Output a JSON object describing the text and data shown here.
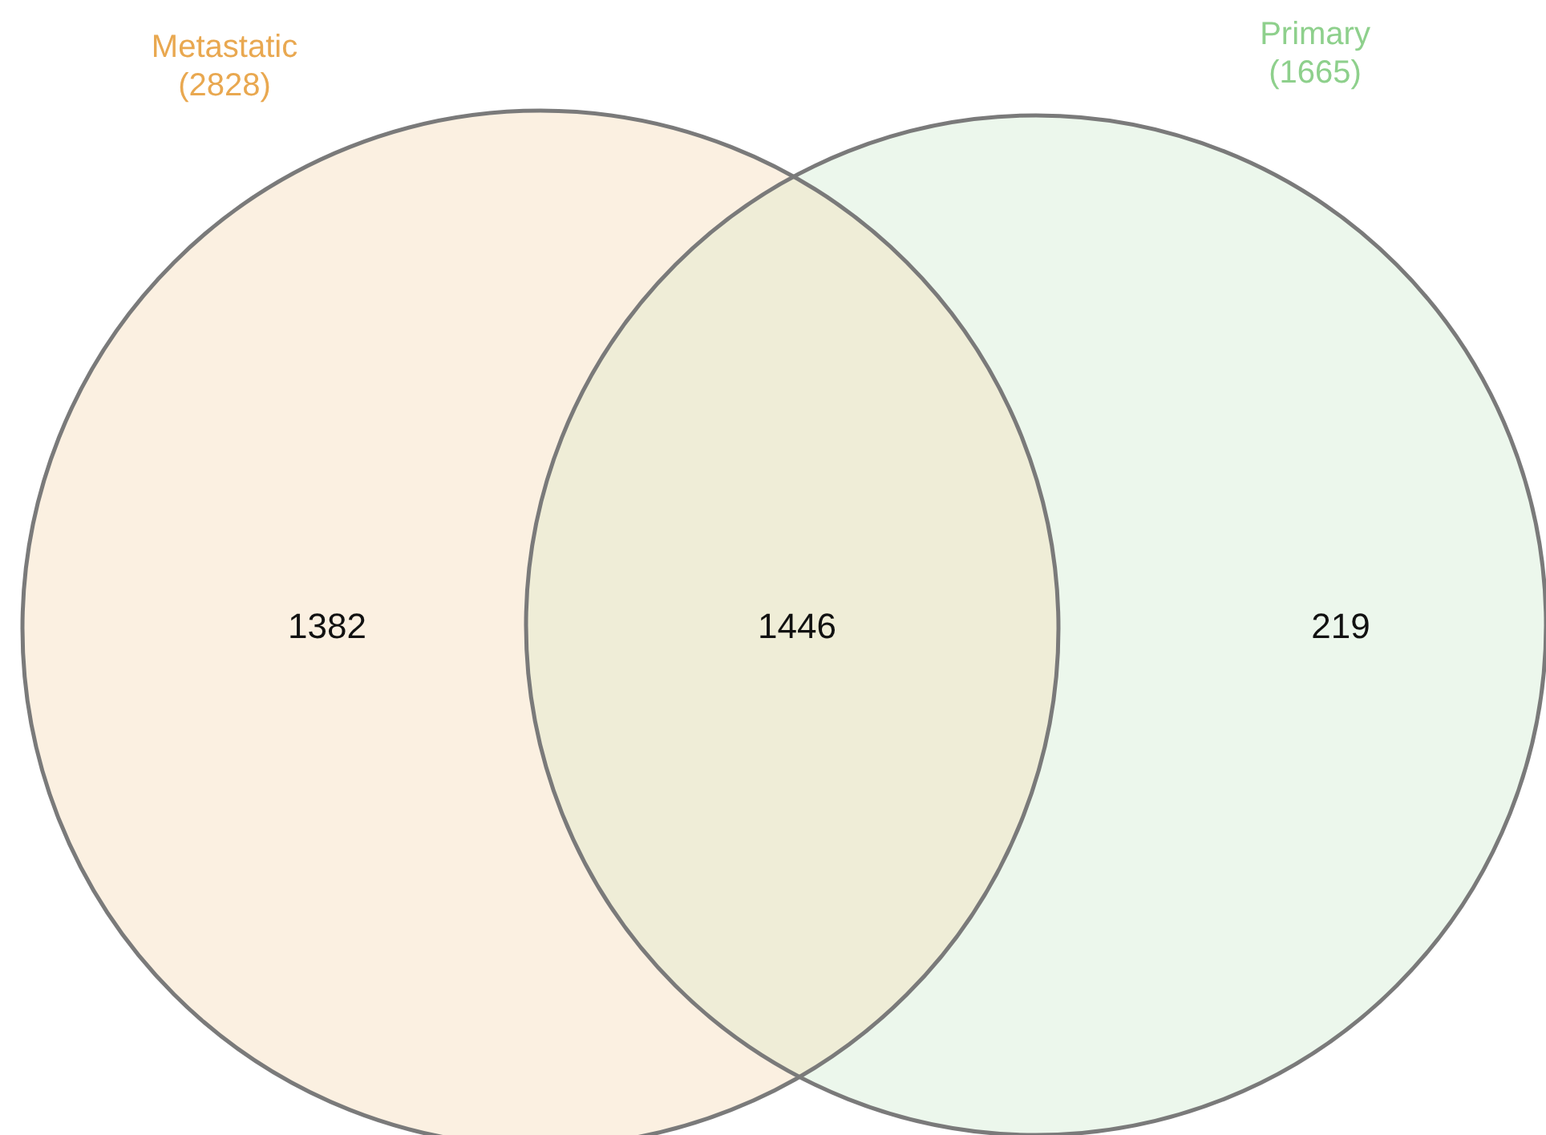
{
  "chart_data": {
    "type": "other",
    "categories": [
      null,
      null,
      null
    ],
    "values": [
      1382,
      1446,
      219
    ],
    "data_labels": true,
    "colors": [
      "#e9a850",
      "#c9c47a",
      "#8ed08c"
    ],
    "annotations": [
      "Metastatic",
      "(2828)",
      "Primary",
      "(1665)"
    ]
  }
}
